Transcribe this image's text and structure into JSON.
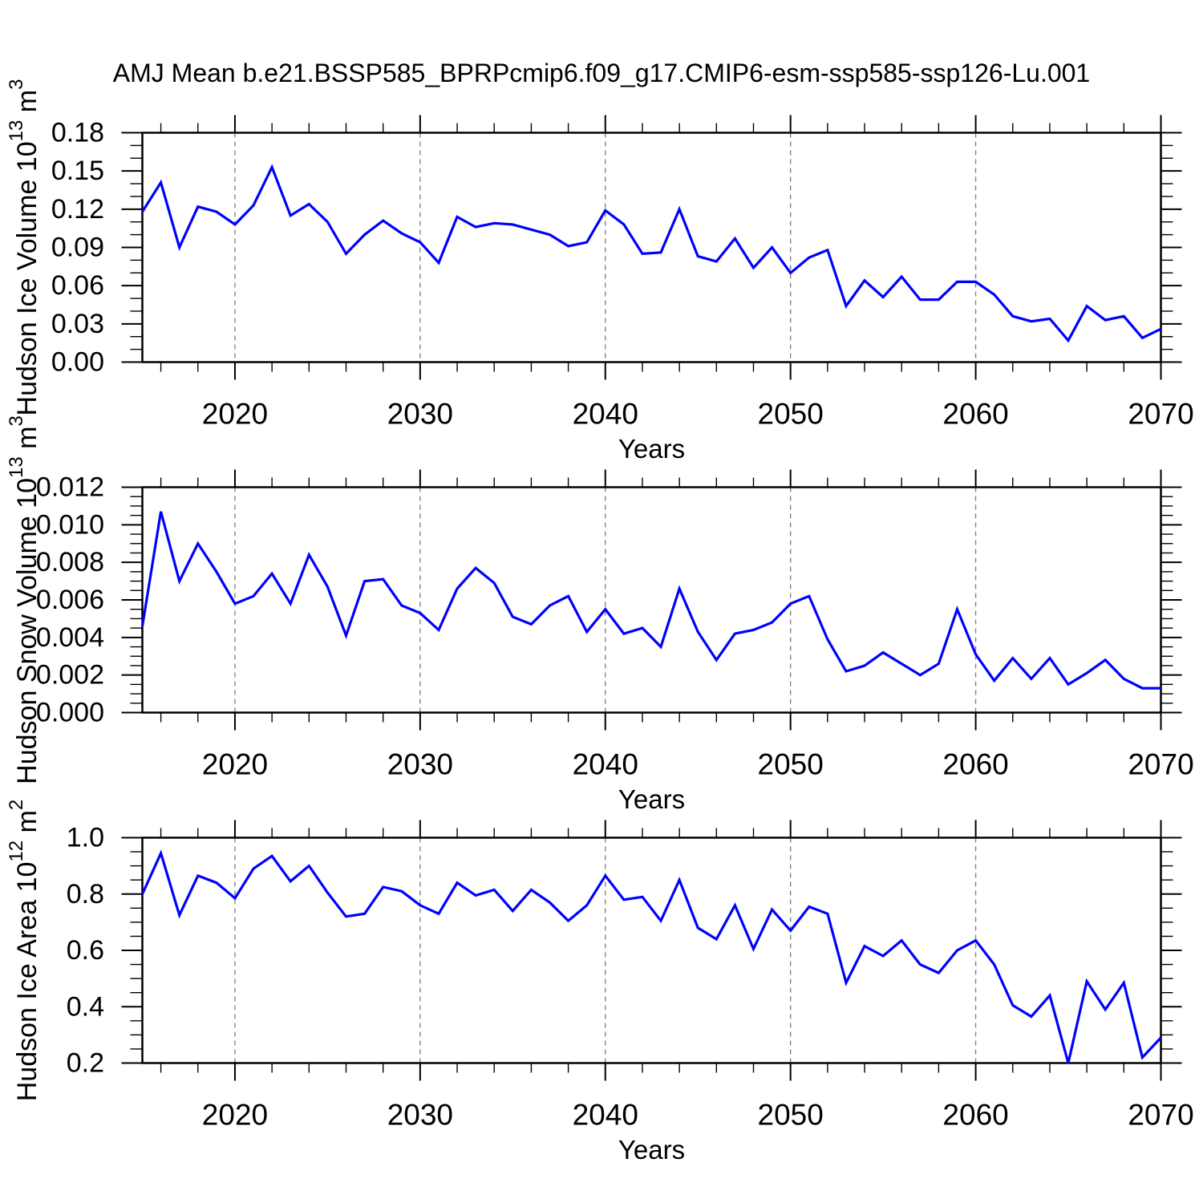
{
  "figure": {
    "title": "AMJ Mean b.e21.BSSP585_BPRPcmip6.f09_g17.CMIP6-esm-ssp585-ssp126-Lu.001",
    "background_color": "#ffffff",
    "axis_color": "#000000",
    "gridline_color": "#7b7b7b",
    "line_color": "#0000ff"
  },
  "chart_data": [
    {
      "type": "line",
      "name": "hudson-ice-volume",
      "ylabel": "Hudson Ice Volume 10^13 m^3",
      "ylabel_segments": [
        {
          "t": "Hudson Ice Volume 10",
          "sup": false
        },
        {
          "t": "13",
          "sup": true
        },
        {
          "t": " m",
          "sup": false
        },
        {
          "t": "3",
          "sup": true
        }
      ],
      "xlabel": "Years",
      "ylim": [
        0.0,
        0.18
      ],
      "y_ticks": [
        {
          "v": 0.0,
          "label": "0.00"
        },
        {
          "v": 0.03,
          "label": "0.03"
        },
        {
          "v": 0.06,
          "label": "0.06"
        },
        {
          "v": 0.09,
          "label": "0.09"
        },
        {
          "v": 0.12,
          "label": "0.12"
        },
        {
          "v": 0.15,
          "label": "0.15"
        },
        {
          "v": 0.18,
          "label": "0.18"
        }
      ],
      "y_minor_step": 0.01,
      "xlim": [
        2015,
        2070
      ],
      "x_ticks": [
        {
          "v": 2020,
          "label": "2020"
        },
        {
          "v": 2030,
          "label": "2030"
        },
        {
          "v": 2040,
          "label": "2040"
        },
        {
          "v": 2050,
          "label": "2050"
        },
        {
          "v": 2060,
          "label": "2060"
        },
        {
          "v": 2070,
          "label": "2070"
        }
      ],
      "x_minor_step": 2,
      "gridline_years": [
        2020,
        2030,
        2040,
        2050,
        2060
      ],
      "grid": true,
      "legend": "none",
      "years": [
        2015,
        2016,
        2017,
        2018,
        2019,
        2020,
        2021,
        2022,
        2023,
        2024,
        2025,
        2026,
        2027,
        2028,
        2029,
        2030,
        2031,
        2032,
        2033,
        2034,
        2035,
        2036,
        2037,
        2038,
        2039,
        2040,
        2041,
        2042,
        2043,
        2044,
        2045,
        2046,
        2047,
        2048,
        2049,
        2050,
        2051,
        2052,
        2053,
        2054,
        2055,
        2056,
        2057,
        2058,
        2059,
        2060,
        2061,
        2062,
        2063,
        2064,
        2065,
        2066,
        2067,
        2068,
        2069,
        2070
      ],
      "values": [
        0.118,
        0.141,
        0.09,
        0.122,
        0.118,
        0.108,
        0.123,
        0.153,
        0.115,
        0.124,
        0.11,
        0.085,
        0.1,
        0.111,
        0.101,
        0.094,
        0.078,
        0.114,
        0.106,
        0.109,
        0.108,
        0.104,
        0.1,
        0.091,
        0.094,
        0.119,
        0.108,
        0.085,
        0.086,
        0.12,
        0.083,
        0.079,
        0.097,
        0.074,
        0.09,
        0.07,
        0.082,
        0.088,
        0.044,
        0.064,
        0.051,
        0.067,
        0.049,
        0.049,
        0.063,
        0.063,
        0.053,
        0.036,
        0.032,
        0.034,
        0.017,
        0.044,
        0.033,
        0.036,
        0.019,
        0.026
      ]
    },
    {
      "type": "line",
      "name": "hudson-snow-volume",
      "ylabel": "Hudson Snow Volume 10^13 m^3",
      "ylabel_segments": [
        {
          "t": "Hudson Snow Volume 10",
          "sup": false
        },
        {
          "t": "13",
          "sup": true
        },
        {
          "t": " m",
          "sup": false
        },
        {
          "t": "3",
          "sup": true
        }
      ],
      "xlabel": "Years",
      "ylim": [
        0.0,
        0.012
      ],
      "y_ticks": [
        {
          "v": 0.0,
          "label": "0.000"
        },
        {
          "v": 0.002,
          "label": "0.002"
        },
        {
          "v": 0.004,
          "label": "0.004"
        },
        {
          "v": 0.006,
          "label": "0.006"
        },
        {
          "v": 0.008,
          "label": "0.008"
        },
        {
          "v": 0.01,
          "label": "0.010"
        },
        {
          "v": 0.012,
          "label": "0.012"
        }
      ],
      "y_minor_step": 0.0005,
      "xlim": [
        2015,
        2070
      ],
      "x_ticks": [
        {
          "v": 2020,
          "label": "2020"
        },
        {
          "v": 2030,
          "label": "2030"
        },
        {
          "v": 2040,
          "label": "2040"
        },
        {
          "v": 2050,
          "label": "2050"
        },
        {
          "v": 2060,
          "label": "2060"
        },
        {
          "v": 2070,
          "label": "2070"
        }
      ],
      "x_minor_step": 2,
      "gridline_years": [
        2020,
        2030,
        2040,
        2050,
        2060
      ],
      "grid": true,
      "legend": "none",
      "years": [
        2015,
        2016,
        2017,
        2018,
        2019,
        2020,
        2021,
        2022,
        2023,
        2024,
        2025,
        2026,
        2027,
        2028,
        2029,
        2030,
        2031,
        2032,
        2033,
        2034,
        2035,
        2036,
        2037,
        2038,
        2039,
        2040,
        2041,
        2042,
        2043,
        2044,
        2045,
        2046,
        2047,
        2048,
        2049,
        2050,
        2051,
        2052,
        2053,
        2054,
        2055,
        2056,
        2057,
        2058,
        2059,
        2060,
        2061,
        2062,
        2063,
        2064,
        2065,
        2066,
        2067,
        2068,
        2069,
        2070
      ],
      "values": [
        0.0046,
        0.0107,
        0.007,
        0.009,
        0.0075,
        0.0058,
        0.0062,
        0.0074,
        0.0058,
        0.0084,
        0.0067,
        0.0041,
        0.007,
        0.0071,
        0.0057,
        0.0053,
        0.0044,
        0.0066,
        0.0077,
        0.0069,
        0.0051,
        0.0047,
        0.0057,
        0.0062,
        0.0043,
        0.0055,
        0.0042,
        0.0045,
        0.0035,
        0.0066,
        0.0043,
        0.0028,
        0.0042,
        0.0044,
        0.0048,
        0.0058,
        0.0062,
        0.0039,
        0.0022,
        0.0025,
        0.0032,
        0.0026,
        0.002,
        0.0026,
        0.0055,
        0.0031,
        0.0017,
        0.0029,
        0.0018,
        0.0029,
        0.0015,
        0.0021,
        0.0028,
        0.0018,
        0.0013,
        0.0013
      ]
    },
    {
      "type": "line",
      "name": "hudson-ice-area",
      "ylabel": "Hudson Ice Area 10^12 m^2",
      "ylabel_segments": [
        {
          "t": "Hudson Ice Area 10",
          "sup": false
        },
        {
          "t": "12",
          "sup": true
        },
        {
          "t": " m",
          "sup": false
        },
        {
          "t": "2",
          "sup": true
        }
      ],
      "xlabel": "Years",
      "ylim": [
        0.2,
        1.0
      ],
      "y_ticks": [
        {
          "v": 0.2,
          "label": "0.2"
        },
        {
          "v": 0.4,
          "label": "0.4"
        },
        {
          "v": 0.6,
          "label": "0.6"
        },
        {
          "v": 0.8,
          "label": "0.8"
        },
        {
          "v": 1.0,
          "label": "1.0"
        }
      ],
      "y_minor_step": 0.05,
      "xlim": [
        2015,
        2070
      ],
      "x_ticks": [
        {
          "v": 2020,
          "label": "2020"
        },
        {
          "v": 2030,
          "label": "2030"
        },
        {
          "v": 2040,
          "label": "2040"
        },
        {
          "v": 2050,
          "label": "2050"
        },
        {
          "v": 2060,
          "label": "2060"
        },
        {
          "v": 2070,
          "label": "2070"
        }
      ],
      "x_minor_step": 2,
      "gridline_years": [
        2020,
        2030,
        2040,
        2050,
        2060
      ],
      "grid": true,
      "legend": "none",
      "years": [
        2015,
        2016,
        2017,
        2018,
        2019,
        2020,
        2021,
        2022,
        2023,
        2024,
        2025,
        2026,
        2027,
        2028,
        2029,
        2030,
        2031,
        2032,
        2033,
        2034,
        2035,
        2036,
        2037,
        2038,
        2039,
        2040,
        2041,
        2042,
        2043,
        2044,
        2045,
        2046,
        2047,
        2048,
        2049,
        2050,
        2051,
        2052,
        2053,
        2054,
        2055,
        2056,
        2057,
        2058,
        2059,
        2060,
        2061,
        2062,
        2063,
        2064,
        2065,
        2066,
        2067,
        2068,
        2069,
        2070
      ],
      "values": [
        0.8,
        0.945,
        0.725,
        0.865,
        0.84,
        0.785,
        0.89,
        0.935,
        0.845,
        0.9,
        0.805,
        0.72,
        0.73,
        0.825,
        0.81,
        0.76,
        0.73,
        0.84,
        0.795,
        0.815,
        0.74,
        0.815,
        0.77,
        0.705,
        0.76,
        0.865,
        0.78,
        0.79,
        0.705,
        0.85,
        0.68,
        0.64,
        0.76,
        0.605,
        0.745,
        0.67,
        0.755,
        0.73,
        0.485,
        0.615,
        0.58,
        0.635,
        0.55,
        0.52,
        0.6,
        0.635,
        0.55,
        0.405,
        0.365,
        0.44,
        0.2,
        0.49,
        0.39,
        0.485,
        0.22,
        0.29
      ]
    }
  ]
}
